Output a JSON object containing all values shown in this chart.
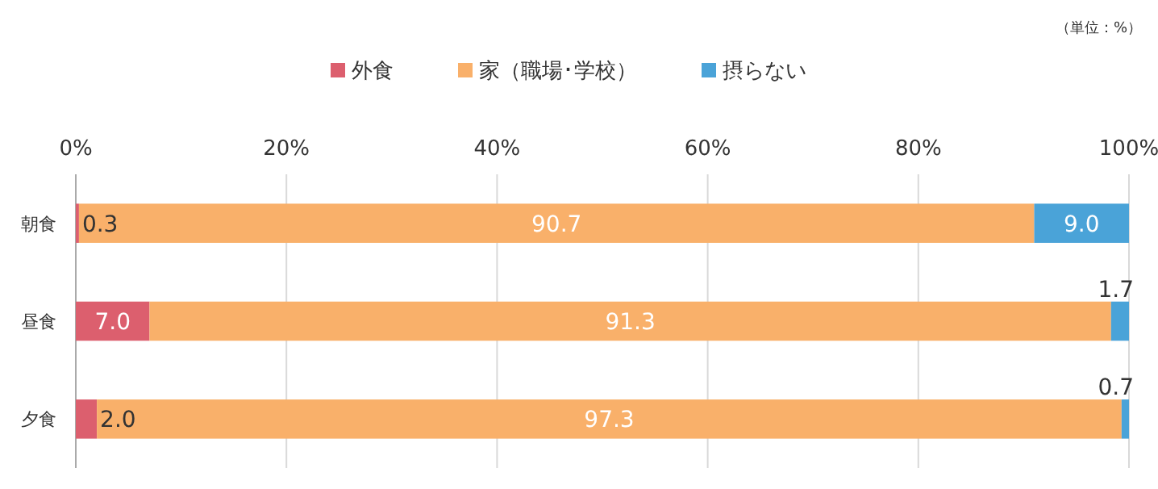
{
  "chart_data": {
    "type": "bar",
    "orientation": "horizontal",
    "stacked": true,
    "categories": [
      "朝食",
      "昼食",
      "夕食"
    ],
    "series": [
      {
        "name": "外食",
        "color": "#dc5f6e",
        "values": [
          0.3,
          7.0,
          2.0
        ],
        "value_labels": [
          "0.3",
          "7.0",
          "2.0"
        ]
      },
      {
        "name": "家（職場･学校）",
        "color": "#f9b06a",
        "values": [
          90.7,
          91.3,
          97.3
        ],
        "value_labels": [
          "90.7",
          "91.3",
          "97.3"
        ]
      },
      {
        "name": "摂らない",
        "color": "#4aa3d8",
        "values": [
          9.0,
          1.7,
          0.7
        ],
        "value_labels": [
          "9.0",
          "1.7",
          "0.7"
        ]
      }
    ],
    "xlim": [
      0,
      100
    ],
    "xticks": [
      {
        "value": 0,
        "label": "0%"
      },
      {
        "value": 20,
        "label": "20%"
      },
      {
        "value": 40,
        "label": "40%"
      },
      {
        "value": 60,
        "label": "60%"
      },
      {
        "value": 80,
        "label": "80%"
      },
      {
        "value": 100,
        "label": "100%"
      }
    ],
    "grid": "x",
    "legend": "top",
    "annotations": [
      "（単位：%）"
    ]
  }
}
